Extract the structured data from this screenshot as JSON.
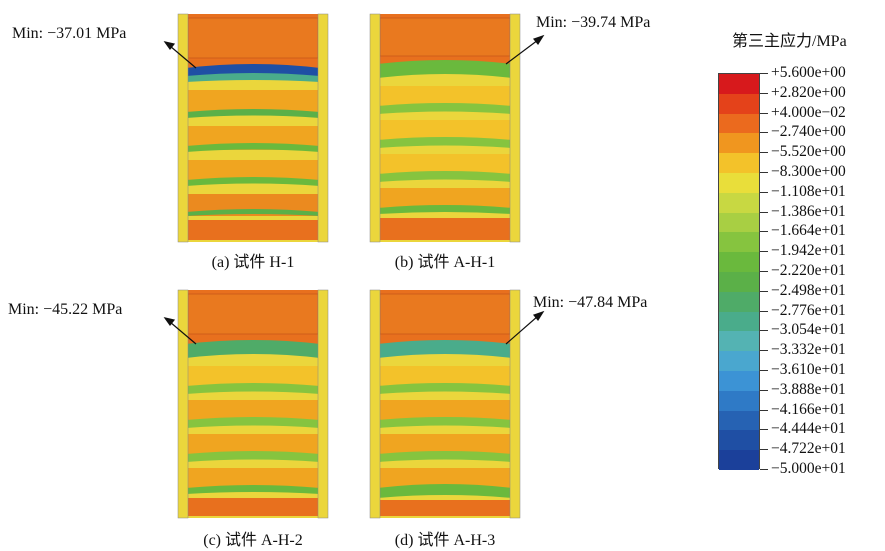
{
  "specimens": [
    {
      "id": "a",
      "caption": "(a) 试件 H-1",
      "min_label": "Min: −37.01 MPa"
    },
    {
      "id": "b",
      "caption": "(b) 试件 A-H-1",
      "min_label": "Min: −39.74 MPa"
    },
    {
      "id": "c",
      "caption": "(c) 试件 A-H-2",
      "min_label": "Min: −45.22 MPa"
    },
    {
      "id": "d",
      "caption": "(d) 试件 A-H-3",
      "min_label": "Min: −47.84 MPa"
    }
  ],
  "legend": {
    "title": "第三主应力/MPa",
    "ticks": [
      "+5.600e+00",
      "+2.820e+00",
      "+4.000e−02",
      "−2.740e+00",
      "−5.520e+00",
      "−8.300e+00",
      "−1.108e+01",
      "−1.386e+01",
      "−1.664e+01",
      "−1.942e+01",
      "−2.220e+01",
      "−2.498e+01",
      "−2.776e+01",
      "−3.054e+01",
      "−3.332e+01",
      "−3.610e+01",
      "−3.888e+01",
      "−4.166e+01",
      "−4.444e+01",
      "−4.722e+01",
      "−5.000e+01"
    ],
    "colors": [
      "#d7191c",
      "#e4421a",
      "#eb6a1e",
      "#f0961f",
      "#f3c22a",
      "#e9de3a",
      "#c8d842",
      "#a8cf43",
      "#86c43f",
      "#6ab93d",
      "#5bb048",
      "#4fab68",
      "#4aac8b",
      "#54b3b3",
      "#4aa7cf",
      "#3c93d5",
      "#2f7ac6",
      "#2662b3",
      "#1f4fa4",
      "#1b409a"
    ]
  }
}
